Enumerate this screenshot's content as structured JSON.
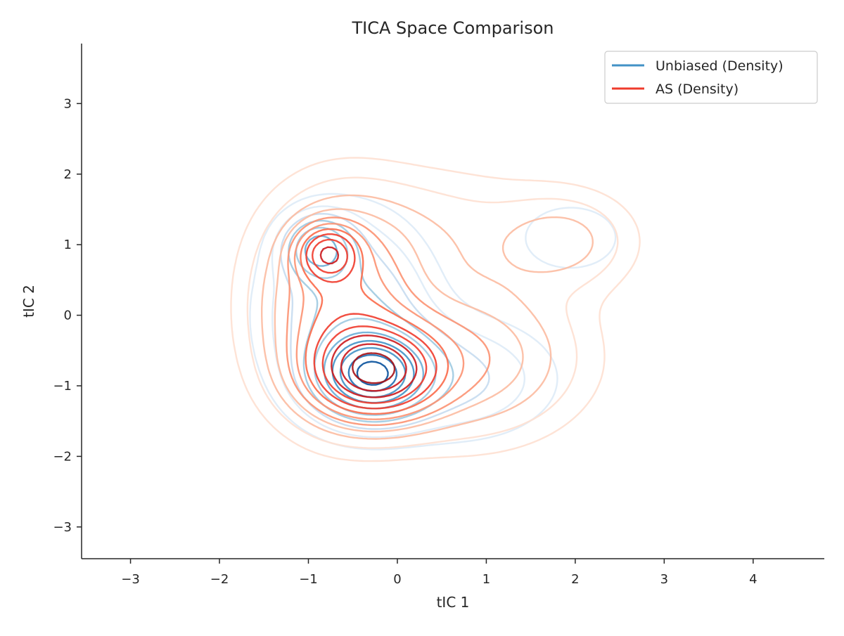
{
  "chart_data": {
    "type": "contour",
    "title": "TICA Space Comparison",
    "xlabel": "tIC 1",
    "ylabel": "tIC 2",
    "xlim": [
      -3.55,
      4.8
    ],
    "ylim": [
      -3.45,
      3.85
    ],
    "xticks": [
      -3,
      -2,
      -1,
      0,
      1,
      2,
      3,
      4
    ],
    "yticks": [
      -3,
      -2,
      -1,
      0,
      1,
      2,
      3
    ],
    "xtick_labels": [
      "−3",
      "−2",
      "−1",
      "0",
      "1",
      "2",
      "3",
      "4"
    ],
    "ytick_labels": [
      "−3",
      "−2",
      "−1",
      "0",
      "1",
      "2",
      "3"
    ],
    "legend_position": "top-right",
    "grid": false,
    "series": [
      {
        "name": "Unbiased (Density)",
        "legend_color": "#4292c6",
        "colors": [
          "#deebf7",
          "#c6dbef",
          "#9ecae1",
          "#6baed6",
          "#4292c6",
          "#2171b5",
          "#08519c"
        ],
        "peaks": [
          {
            "x": -0.28,
            "y": -0.85,
            "weight": 1.0,
            "sx": 0.38,
            "sy": 0.36
          },
          {
            "x": -0.88,
            "y": 0.95,
            "weight": 0.55,
            "sx": 0.24,
            "sy": 0.28
          },
          {
            "x": 1.95,
            "y": 1.1,
            "weight": 0.12,
            "sx": 0.45,
            "sy": 0.38
          },
          {
            "x": -0.55,
            "y": 0.0,
            "weight": 0.35,
            "sx": 0.6,
            "sy": 0.9
          },
          {
            "x": 0.7,
            "y": -0.9,
            "weight": 0.22,
            "sx": 0.7,
            "sy": 0.55
          }
        ],
        "levels": [
          0.05,
          0.1,
          0.16,
          0.24,
          0.34,
          0.46,
          0.58,
          0.7,
          0.82,
          0.92
        ]
      },
      {
        "name": "AS (Density)",
        "legend_color": "#ef3b2c",
        "colors": [
          "#fee0d2",
          "#fcbba1",
          "#fc9272",
          "#fb6a4a",
          "#ef3b2c",
          "#cb181d",
          "#a50f15"
        ],
        "peaks": [
          {
            "x": -0.25,
            "y": -0.8,
            "weight": 1.0,
            "sx": 0.45,
            "sy": 0.4
          },
          {
            "x": -0.78,
            "y": 0.88,
            "weight": 0.6,
            "sx": 0.22,
            "sy": 0.25
          },
          {
            "x": -0.65,
            "y": 0.1,
            "weight": 0.45,
            "sx": 0.55,
            "sy": 0.9
          },
          {
            "x": 1.9,
            "y": 1.05,
            "weight": 0.14,
            "sx": 0.5,
            "sy": 0.45
          },
          {
            "x": 0.75,
            "y": -0.6,
            "weight": 0.28,
            "sx": 0.8,
            "sy": 0.7
          },
          {
            "x": 0.4,
            "y": 1.2,
            "weight": 0.1,
            "sx": 0.9,
            "sy": 0.6
          }
        ],
        "levels": [
          0.03,
          0.06,
          0.1,
          0.15,
          0.21,
          0.28,
          0.36,
          0.45,
          0.55,
          0.66,
          0.78,
          0.9
        ]
      }
    ]
  }
}
